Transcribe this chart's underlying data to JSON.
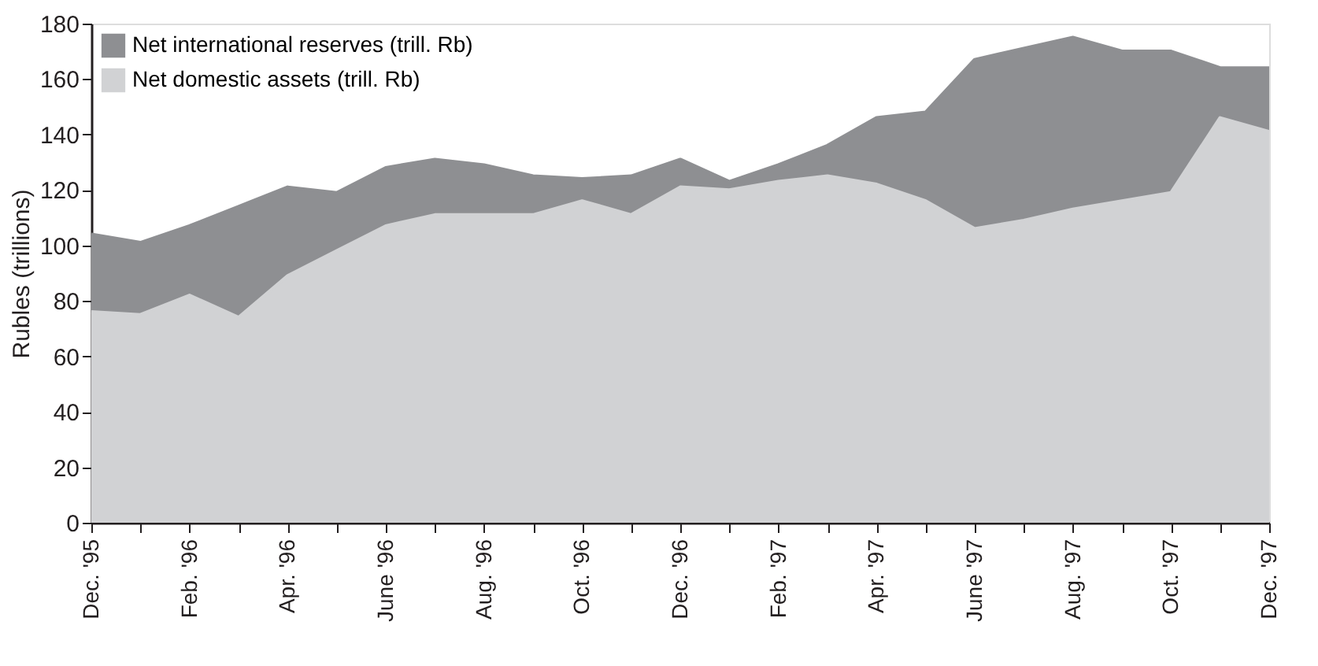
{
  "chart_data": {
    "type": "area",
    "stacked": true,
    "ylabel": "Rubles (trillions)",
    "categories": [
      "Dec. '95",
      null,
      "Feb. '96",
      null,
      "Apr. '96",
      null,
      "June '96",
      null,
      "Aug. '96",
      null,
      "Oct. '96",
      null,
      "Dec. '96",
      null,
      "Feb. '97",
      null,
      "Apr. '97",
      null,
      "June '97",
      null,
      "Aug. '97",
      null,
      "Oct. '97",
      null,
      "Dec. '97"
    ],
    "series": [
      {
        "name": "Net domestic assets (trill. Rb)",
        "color": "#d1d2d4",
        "values": [
          76,
          75,
          82,
          74,
          89,
          98,
          107,
          111,
          111,
          111,
          116,
          111,
          121,
          120,
          123,
          125,
          122,
          116,
          106,
          109,
          113,
          116,
          119,
          146,
          141
        ]
      },
      {
        "name": "Net international reserves (trill. Rb)",
        "color": "#8e8f92",
        "values": [
          28,
          26,
          25,
          40,
          32,
          21,
          21,
          20,
          18,
          14,
          8,
          14,
          10,
          3,
          6,
          11,
          24,
          32,
          61,
          62,
          62,
          54,
          51,
          18,
          23
        ]
      }
    ],
    "ylim": [
      0,
      180
    ],
    "yticks": [
      0,
      20,
      40,
      60,
      80,
      100,
      120,
      140,
      160,
      180
    ],
    "grid": false,
    "legend": "top left"
  }
}
